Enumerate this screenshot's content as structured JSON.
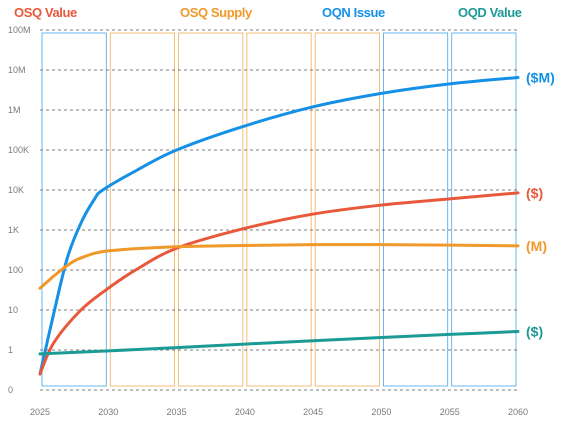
{
  "chart_data": {
    "type": "line",
    "y_scale": "log",
    "ylim": [
      0,
      100000000
    ],
    "xlim": [
      2025,
      2060
    ],
    "x_ticks": [
      2025,
      2030,
      2035,
      2040,
      2045,
      2050,
      2055,
      2060
    ],
    "y_ticks": [
      {
        "value": 0,
        "label": "0"
      },
      {
        "value": 1,
        "label": "1"
      },
      {
        "value": 10,
        "label": "10"
      },
      {
        "value": 100,
        "label": "100"
      },
      {
        "value": 1000,
        "label": "1K"
      },
      {
        "value": 10000,
        "label": "10K"
      },
      {
        "value": 100000,
        "label": "100K"
      },
      {
        "value": 1000000,
        "label": "1M"
      },
      {
        "value": 10000000,
        "label": "10M"
      },
      {
        "value": 100000000,
        "label": "100M"
      }
    ],
    "grid": "horizontal dashed",
    "legend": [
      {
        "name": "OSQ Value",
        "color": "#e8583a"
      },
      {
        "name": "OSQ Supply",
        "color": "#f0982a"
      },
      {
        "name": "OQN Issue",
        "color": "#1490e6"
      },
      {
        "name": "OQD Value",
        "color": "#1c9a96"
      }
    ],
    "highlight_bands": [
      {
        "from": 2025,
        "to": 2030,
        "color": "#1490e6"
      },
      {
        "from": 2030,
        "to": 2035,
        "color": "#f0982a"
      },
      {
        "from": 2035,
        "to": 2040,
        "color": "#f0982a"
      },
      {
        "from": 2040,
        "to": 2045,
        "color": "#f0982a"
      },
      {
        "from": 2045,
        "to": 2050,
        "color": "#f0982a"
      },
      {
        "from": 2050,
        "to": 2055,
        "color": "#1490e6"
      },
      {
        "from": 2055,
        "to": 2060,
        "color": "#1490e6"
      }
    ],
    "series": [
      {
        "name": "OQN Issue",
        "color": "#1490e6",
        "end_label": "($M)",
        "points": [
          [
            2025,
            0.25
          ],
          [
            2026,
            8
          ],
          [
            2027,
            200
          ],
          [
            2028,
            1500
          ],
          [
            2029,
            6000
          ],
          [
            2029.6,
            10000
          ],
          [
            2032,
            30000
          ],
          [
            2035,
            100000
          ],
          [
            2040,
            400000
          ],
          [
            2045,
            1200000
          ],
          [
            2050,
            2600000
          ],
          [
            2055,
            4500000
          ],
          [
            2060,
            6500000
          ]
        ]
      },
      {
        "name": "OSQ Value",
        "color": "#e8583a",
        "end_label": "($)",
        "points": [
          [
            2025,
            0.25
          ],
          [
            2026,
            1.5
          ],
          [
            2028,
            10
          ],
          [
            2030,
            35
          ],
          [
            2032,
            100
          ],
          [
            2035,
            350
          ],
          [
            2040,
            1100
          ],
          [
            2045,
            2500
          ],
          [
            2050,
            4200
          ],
          [
            2055,
            6000
          ],
          [
            2060,
            8500
          ]
        ]
      },
      {
        "name": "OSQ Supply",
        "color": "#f0982a",
        "end_label": "(M)",
        "points": [
          [
            2025,
            35
          ],
          [
            2026,
            70
          ],
          [
            2027,
            130
          ],
          [
            2028,
            200
          ],
          [
            2030,
            300
          ],
          [
            2035,
            380
          ],
          [
            2040,
            410
          ],
          [
            2045,
            430
          ],
          [
            2050,
            430
          ],
          [
            2055,
            420
          ],
          [
            2060,
            400
          ]
        ]
      },
      {
        "name": "OQD Value",
        "color": "#1c9a96",
        "end_label": "($)",
        "points": [
          [
            2025,
            0.8
          ],
          [
            2030,
            0.95
          ],
          [
            2035,
            1.15
          ],
          [
            2040,
            1.4
          ],
          [
            2045,
            1.7
          ],
          [
            2050,
            2.05
          ],
          [
            2055,
            2.45
          ],
          [
            2060,
            2.9
          ]
        ]
      }
    ]
  }
}
